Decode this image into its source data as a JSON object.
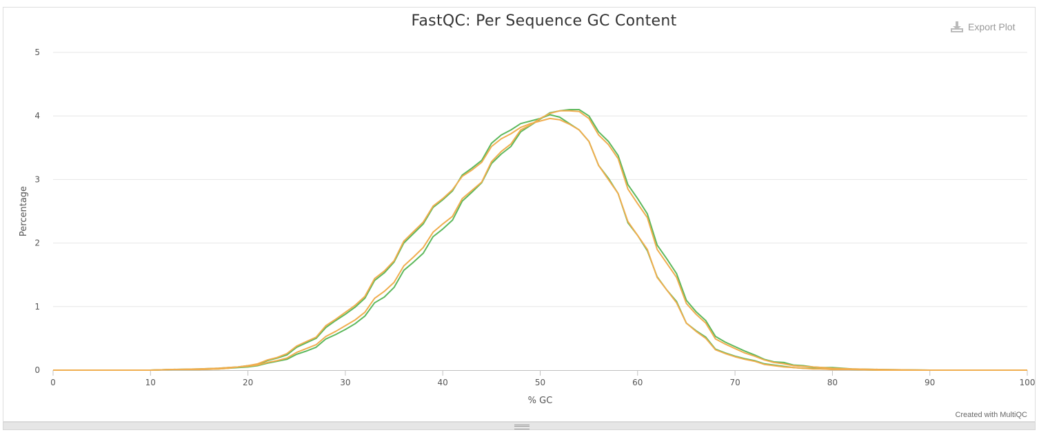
{
  "header": {
    "title": "FastQC: Per Sequence GC Content",
    "export_label": "Export Plot"
  },
  "footer": {
    "credit": "Created with MultiQC"
  },
  "icons": {
    "export": "download-icon",
    "resize": "resize-grip-icon"
  },
  "chart_data": {
    "type": "line",
    "title": "FastQC: Per Sequence GC Content",
    "xlabel": "% GC",
    "ylabel": "Percentage",
    "xlim": [
      0,
      100
    ],
    "ylim": [
      0,
      5
    ],
    "xticks": [
      0,
      10,
      20,
      30,
      40,
      50,
      60,
      70,
      80,
      90,
      100
    ],
    "yticks": [
      0,
      1,
      2,
      3,
      4,
      5
    ],
    "grid": "horizontal",
    "legend": "none",
    "series": [
      {
        "color": "#5cb85c",
        "x": [
          0,
          5,
          10,
          12,
          15,
          17,
          18,
          19,
          20,
          21,
          22,
          23,
          24,
          25,
          26,
          27,
          28,
          29,
          30,
          31,
          32,
          33,
          34,
          35,
          36,
          37,
          38,
          39,
          40,
          41,
          42,
          43,
          44,
          45,
          46,
          47,
          48,
          49,
          50,
          51,
          52,
          53,
          54,
          55,
          56,
          57,
          58,
          59,
          60,
          61,
          62,
          63,
          64,
          65,
          66,
          67,
          68,
          69,
          70,
          71,
          72,
          73,
          74,
          75,
          76,
          77,
          78,
          79,
          80,
          82,
          85,
          90,
          95,
          100
        ],
        "y": [
          0,
          0,
          0,
          0.01,
          0.01,
          0.02,
          0.03,
          0.04,
          0.05,
          0.07,
          0.11,
          0.14,
          0.17,
          0.25,
          0.3,
          0.36,
          0.49,
          0.56,
          0.64,
          0.73,
          0.85,
          1.06,
          1.15,
          1.3,
          1.57,
          1.7,
          1.84,
          2.1,
          2.22,
          2.36,
          2.66,
          2.8,
          2.95,
          3.25,
          3.4,
          3.52,
          3.75,
          3.85,
          3.95,
          4.05,
          4.08,
          4.1,
          4.1,
          4.0,
          3.75,
          3.6,
          3.38,
          2.92,
          2.7,
          2.46,
          1.97,
          1.75,
          1.52,
          1.1,
          0.92,
          0.78,
          0.53,
          0.44,
          0.37,
          0.3,
          0.24,
          0.17,
          0.13,
          0.12,
          0.08,
          0.07,
          0.05,
          0.04,
          0.04,
          0.02,
          0.01,
          0,
          0,
          0
        ]
      },
      {
        "color": "#5cb85c",
        "x": [
          0,
          5,
          10,
          12,
          15,
          17,
          18,
          19,
          20,
          21,
          22,
          23,
          24,
          25,
          26,
          27,
          28,
          29,
          30,
          31,
          32,
          33,
          34,
          35,
          36,
          37,
          38,
          39,
          40,
          41,
          42,
          43,
          44,
          45,
          46,
          47,
          48,
          49,
          50,
          51,
          52,
          53,
          54,
          55,
          56,
          57,
          58,
          59,
          60,
          61,
          62,
          63,
          64,
          65,
          66,
          67,
          68,
          69,
          70,
          71,
          72,
          73,
          74,
          75,
          76,
          77,
          78,
          79,
          80,
          82,
          85,
          90,
          95,
          100
        ],
        "y": [
          0,
          0,
          0,
          0.01,
          0.02,
          0.03,
          0.04,
          0.05,
          0.07,
          0.09,
          0.15,
          0.19,
          0.24,
          0.36,
          0.43,
          0.5,
          0.67,
          0.78,
          0.88,
          0.99,
          1.13,
          1.41,
          1.53,
          1.7,
          2.0,
          2.15,
          2.3,
          2.56,
          2.68,
          2.82,
          3.07,
          3.18,
          3.3,
          3.57,
          3.7,
          3.78,
          3.88,
          3.92,
          3.96,
          4.02,
          3.98,
          3.88,
          3.78,
          3.6,
          3.22,
          3.02,
          2.78,
          2.32,
          2.12,
          1.88,
          1.47,
          1.26,
          1.08,
          0.74,
          0.62,
          0.52,
          0.33,
          0.27,
          0.22,
          0.18,
          0.15,
          0.1,
          0.08,
          0.06,
          0.04,
          0.03,
          0.03,
          0.02,
          0.02,
          0.01,
          0,
          0,
          0,
          0
        ]
      },
      {
        "color": "#f0ad4e",
        "x": [
          0,
          5,
          10,
          12,
          15,
          17,
          18,
          19,
          20,
          21,
          22,
          23,
          24,
          25,
          26,
          27,
          28,
          29,
          30,
          31,
          32,
          33,
          34,
          35,
          36,
          37,
          38,
          39,
          40,
          41,
          42,
          43,
          44,
          45,
          46,
          47,
          48,
          49,
          50,
          51,
          52,
          53,
          54,
          55,
          56,
          57,
          58,
          59,
          60,
          61,
          62,
          63,
          64,
          65,
          66,
          67,
          68,
          69,
          70,
          71,
          72,
          73,
          74,
          75,
          76,
          77,
          78,
          79,
          80,
          82,
          85,
          90,
          95,
          100
        ],
        "y": [
          0,
          0,
          0,
          0.01,
          0.01,
          0.02,
          0.03,
          0.05,
          0.06,
          0.08,
          0.12,
          0.15,
          0.19,
          0.28,
          0.34,
          0.4,
          0.53,
          0.61,
          0.7,
          0.79,
          0.91,
          1.13,
          1.24,
          1.38,
          1.64,
          1.78,
          1.93,
          2.17,
          2.3,
          2.42,
          2.7,
          2.83,
          2.96,
          3.28,
          3.44,
          3.56,
          3.78,
          3.86,
          3.96,
          4.04,
          4.08,
          4.08,
          4.07,
          3.96,
          3.7,
          3.55,
          3.33,
          2.85,
          2.62,
          2.4,
          1.9,
          1.68,
          1.46,
          1.05,
          0.88,
          0.74,
          0.49,
          0.41,
          0.34,
          0.27,
          0.22,
          0.16,
          0.12,
          0.1,
          0.07,
          0.06,
          0.05,
          0.04,
          0.03,
          0.02,
          0.01,
          0,
          0,
          0
        ]
      },
      {
        "color": "#f0ad4e",
        "x": [
          0,
          5,
          10,
          12,
          15,
          17,
          18,
          19,
          20,
          21,
          22,
          23,
          24,
          25,
          26,
          27,
          28,
          29,
          30,
          31,
          32,
          33,
          34,
          35,
          36,
          37,
          38,
          39,
          40,
          41,
          42,
          43,
          44,
          45,
          46,
          47,
          48,
          49,
          50,
          51,
          52,
          53,
          54,
          55,
          56,
          57,
          58,
          59,
          60,
          61,
          62,
          63,
          64,
          65,
          66,
          67,
          68,
          69,
          70,
          71,
          72,
          73,
          74,
          75,
          76,
          77,
          78,
          79,
          80,
          82,
          85,
          90,
          95,
          100
        ],
        "y": [
          0,
          0,
          0,
          0.01,
          0.02,
          0.03,
          0.04,
          0.05,
          0.07,
          0.1,
          0.16,
          0.2,
          0.26,
          0.38,
          0.45,
          0.52,
          0.7,
          0.8,
          0.91,
          1.02,
          1.16,
          1.44,
          1.56,
          1.72,
          2.03,
          2.18,
          2.33,
          2.58,
          2.7,
          2.84,
          3.05,
          3.15,
          3.27,
          3.52,
          3.64,
          3.72,
          3.82,
          3.88,
          3.92,
          3.96,
          3.94,
          3.87,
          3.78,
          3.6,
          3.22,
          3.0,
          2.78,
          2.34,
          2.12,
          1.9,
          1.46,
          1.26,
          1.06,
          0.74,
          0.61,
          0.5,
          0.32,
          0.26,
          0.21,
          0.17,
          0.14,
          0.09,
          0.07,
          0.05,
          0.04,
          0.03,
          0.02,
          0.02,
          0.01,
          0.01,
          0,
          0,
          0,
          0
        ]
      }
    ]
  }
}
